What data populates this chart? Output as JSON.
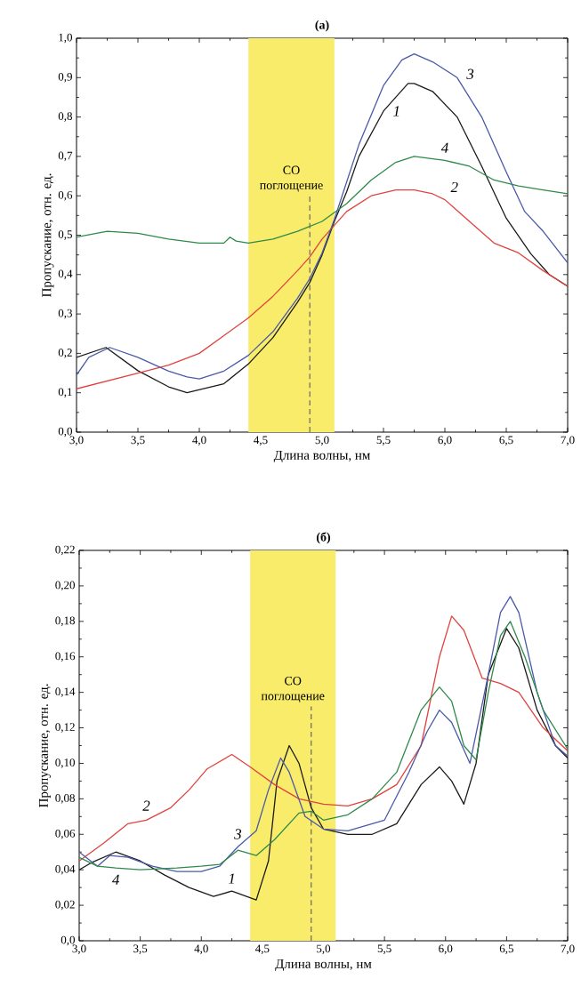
{
  "chart_data": [
    {
      "type": "line",
      "title": "(а)",
      "xlabel": "Длина волны, нм",
      "ylabel": "Пропускание, отн. ед.",
      "xlim": [
        3.0,
        7.0
      ],
      "ylim": [
        0.0,
        1.0
      ],
      "xticks": [
        {
          "value": 3.0,
          "label": "3,0"
        },
        {
          "value": 3.5,
          "label": "3,5"
        },
        {
          "value": 4.0,
          "label": "4,0"
        },
        {
          "value": 4.5,
          "label": "4,5"
        },
        {
          "value": 5.0,
          "label": "5,0"
        },
        {
          "value": 5.5,
          "label": "5,5"
        },
        {
          "value": 6.0,
          "label": "6,0"
        },
        {
          "value": 6.5,
          "label": "6,5"
        },
        {
          "value": 7.0,
          "label": "7,0"
        }
      ],
      "yticks": [
        {
          "value": 0.0,
          "label": "0,0"
        },
        {
          "value": 0.1,
          "label": "0,1"
        },
        {
          "value": 0.2,
          "label": "0,2"
        },
        {
          "value": 0.3,
          "label": "0,3"
        },
        {
          "value": 0.4,
          "label": "0,4"
        },
        {
          "value": 0.5,
          "label": "0,5"
        },
        {
          "value": 0.6,
          "label": "0,6"
        },
        {
          "value": 0.7,
          "label": "0,7"
        },
        {
          "value": 0.8,
          "label": "0,8"
        },
        {
          "value": 0.9,
          "label": "0,9"
        },
        {
          "value": 1.0,
          "label": "1,0"
        }
      ],
      "series": [
        {
          "name": "1",
          "color": "#1a1a1a",
          "x": [
            3.0,
            3.24,
            3.5,
            3.75,
            3.9,
            4.2,
            4.4,
            4.6,
            4.8,
            4.9,
            5.0,
            5.1,
            5.2,
            5.3,
            5.5,
            5.7,
            5.75,
            5.9,
            6.1,
            6.3,
            6.5,
            6.7,
            6.85,
            7.0
          ],
          "values": [
            0.19,
            0.215,
            0.156,
            0.115,
            0.1,
            0.123,
            0.173,
            0.24,
            0.33,
            0.38,
            0.45,
            0.535,
            0.61,
            0.7,
            0.815,
            0.885,
            0.885,
            0.865,
            0.8,
            0.675,
            0.543,
            0.453,
            0.4,
            0.37
          ]
        },
        {
          "name": "2",
          "color": "#e0433e",
          "x": [
            3.0,
            3.25,
            3.5,
            3.75,
            4.0,
            4.2,
            4.4,
            4.6,
            4.8,
            4.9,
            5.0,
            5.1,
            5.2,
            5.4,
            5.6,
            5.75,
            5.9,
            6.0,
            6.2,
            6.4,
            6.6,
            6.8,
            7.0
          ],
          "values": [
            0.11,
            0.13,
            0.15,
            0.17,
            0.2,
            0.245,
            0.29,
            0.345,
            0.41,
            0.445,
            0.49,
            0.525,
            0.56,
            0.6,
            0.615,
            0.615,
            0.605,
            0.59,
            0.535,
            0.48,
            0.455,
            0.41,
            0.37
          ]
        },
        {
          "name": "3",
          "color": "#4a5aa8",
          "x": [
            3.0,
            3.1,
            3.27,
            3.5,
            3.75,
            3.9,
            4.0,
            4.2,
            4.4,
            4.6,
            4.8,
            4.9,
            5.0,
            5.1,
            5.2,
            5.3,
            5.5,
            5.65,
            5.75,
            5.9,
            6.1,
            6.3,
            6.5,
            6.65,
            6.8,
            7.0
          ],
          "values": [
            0.145,
            0.19,
            0.215,
            0.19,
            0.155,
            0.14,
            0.135,
            0.155,
            0.195,
            0.255,
            0.34,
            0.39,
            0.455,
            0.54,
            0.635,
            0.73,
            0.88,
            0.945,
            0.96,
            0.94,
            0.9,
            0.8,
            0.66,
            0.56,
            0.51,
            0.43
          ]
        },
        {
          "name": "4",
          "color": "#2e8a4a",
          "x": [
            3.0,
            3.25,
            3.5,
            3.75,
            4.0,
            4.2,
            4.25,
            4.3,
            4.4,
            4.6,
            4.8,
            5.0,
            5.2,
            5.4,
            5.6,
            5.75,
            6.0,
            6.2,
            6.4,
            6.6,
            6.8,
            7.0
          ],
          "values": [
            0.495,
            0.51,
            0.505,
            0.49,
            0.48,
            0.48,
            0.495,
            0.485,
            0.48,
            0.49,
            0.51,
            0.535,
            0.58,
            0.64,
            0.685,
            0.7,
            0.69,
            0.675,
            0.64,
            0.625,
            0.615,
            0.605
          ]
        }
      ],
      "bands": [
        {
          "axis": "x",
          "from": 4.4,
          "to": 5.1,
          "label": "CO поглощение",
          "color": "#f9ec6a"
        }
      ],
      "ref_lines": [
        {
          "axis": "x",
          "value": 4.9,
          "color": "#666666",
          "line_style": "dashed"
        }
      ],
      "grid": false,
      "legend": false,
      "marker": "none",
      "line_style": "solid"
    },
    {
      "type": "line",
      "title": "(б)",
      "xlabel": "Длина волны, нм",
      "ylabel": "Пропускание, отн. ед.",
      "xlim": [
        3.0,
        7.0
      ],
      "ylim": [
        0.0,
        0.22
      ],
      "xticks": [
        {
          "value": 3.0,
          "label": "3,0"
        },
        {
          "value": 3.5,
          "label": "3,5"
        },
        {
          "value": 4.0,
          "label": "4,0"
        },
        {
          "value": 4.5,
          "label": "4,5"
        },
        {
          "value": 5.0,
          "label": "5,0"
        },
        {
          "value": 5.5,
          "label": "5,5"
        },
        {
          "value": 6.0,
          "label": "6,0"
        },
        {
          "value": 6.5,
          "label": "6,5"
        },
        {
          "value": 7.0,
          "label": "7,0"
        }
      ],
      "yticks": [
        {
          "value": 0.0,
          "label": "0,0"
        },
        {
          "value": 0.02,
          "label": "0,02"
        },
        {
          "value": 0.04,
          "label": "0,04"
        },
        {
          "value": 0.06,
          "label": "0,06"
        },
        {
          "value": 0.08,
          "label": "0,08"
        },
        {
          "value": 0.1,
          "label": "0,10"
        },
        {
          "value": 0.12,
          "label": "0,12"
        },
        {
          "value": 0.14,
          "label": "0,14"
        },
        {
          "value": 0.16,
          "label": "0,16"
        },
        {
          "value": 0.18,
          "label": "0,18"
        },
        {
          "value": 0.2,
          "label": "0,20"
        },
        {
          "value": 0.22,
          "label": "0,22"
        }
      ],
      "series": [
        {
          "name": "1",
          "color": "#1a1a1a",
          "x": [
            3.0,
            3.1,
            3.3,
            3.5,
            3.7,
            3.9,
            4.1,
            4.25,
            4.45,
            4.55,
            4.62,
            4.72,
            4.8,
            4.9,
            5.0,
            5.2,
            5.4,
            5.6,
            5.8,
            5.95,
            6.05,
            6.15,
            6.25,
            6.35,
            6.5,
            6.6,
            6.75,
            6.9,
            7.0
          ],
          "values": [
            0.04,
            0.044,
            0.05,
            0.045,
            0.037,
            0.03,
            0.025,
            0.028,
            0.023,
            0.045,
            0.09,
            0.11,
            0.1,
            0.075,
            0.063,
            0.06,
            0.06,
            0.066,
            0.088,
            0.098,
            0.09,
            0.077,
            0.1,
            0.15,
            0.176,
            0.165,
            0.13,
            0.11,
            0.103
          ]
        },
        {
          "name": "2",
          "color": "#e0433e",
          "x": [
            3.0,
            3.2,
            3.4,
            3.55,
            3.75,
            3.9,
            4.05,
            4.25,
            4.4,
            4.6,
            4.8,
            5.0,
            5.2,
            5.4,
            5.6,
            5.8,
            5.95,
            6.05,
            6.15,
            6.3,
            6.45,
            6.6,
            6.8,
            7.0
          ],
          "values": [
            0.045,
            0.055,
            0.066,
            0.068,
            0.075,
            0.085,
            0.097,
            0.105,
            0.098,
            0.088,
            0.08,
            0.077,
            0.076,
            0.08,
            0.088,
            0.11,
            0.16,
            0.183,
            0.175,
            0.148,
            0.145,
            0.14,
            0.12,
            0.107
          ]
        },
        {
          "name": "3",
          "color": "#4a5aa8",
          "x": [
            3.0,
            3.15,
            3.25,
            3.4,
            3.6,
            3.8,
            4.0,
            4.15,
            4.3,
            4.45,
            4.55,
            4.65,
            4.72,
            4.85,
            5.0,
            5.2,
            5.5,
            5.7,
            5.85,
            5.95,
            6.05,
            6.2,
            6.35,
            6.45,
            6.53,
            6.6,
            6.75,
            6.9,
            7.0
          ],
          "values": [
            0.05,
            0.042,
            0.048,
            0.047,
            0.042,
            0.039,
            0.039,
            0.042,
            0.053,
            0.062,
            0.085,
            0.103,
            0.095,
            0.07,
            0.063,
            0.062,
            0.068,
            0.095,
            0.118,
            0.13,
            0.123,
            0.1,
            0.15,
            0.185,
            0.194,
            0.185,
            0.14,
            0.11,
            0.104
          ]
        },
        {
          "name": "4",
          "color": "#2e8a4a",
          "x": [
            3.0,
            3.15,
            3.3,
            3.5,
            3.8,
            4.0,
            4.15,
            4.3,
            4.45,
            4.6,
            4.8,
            4.9,
            5.0,
            5.2,
            5.4,
            5.6,
            5.8,
            5.95,
            6.05,
            6.15,
            6.25,
            6.35,
            6.45,
            6.53,
            6.65,
            6.8,
            7.0
          ],
          "values": [
            0.047,
            0.042,
            0.041,
            0.04,
            0.041,
            0.042,
            0.043,
            0.051,
            0.048,
            0.057,
            0.072,
            0.073,
            0.068,
            0.071,
            0.08,
            0.095,
            0.13,
            0.143,
            0.135,
            0.11,
            0.102,
            0.14,
            0.172,
            0.18,
            0.16,
            0.13,
            0.108
          ]
        }
      ],
      "bands": [
        {
          "axis": "x",
          "from": 4.4,
          "to": 5.1,
          "label": "CO поглощение",
          "color": "#f9ec6a"
        }
      ],
      "ref_lines": [
        {
          "axis": "x",
          "value": 4.9,
          "color": "#666666",
          "line_style": "dashed"
        }
      ],
      "grid": false,
      "legend": false,
      "marker": "none",
      "line_style": "solid"
    }
  ]
}
